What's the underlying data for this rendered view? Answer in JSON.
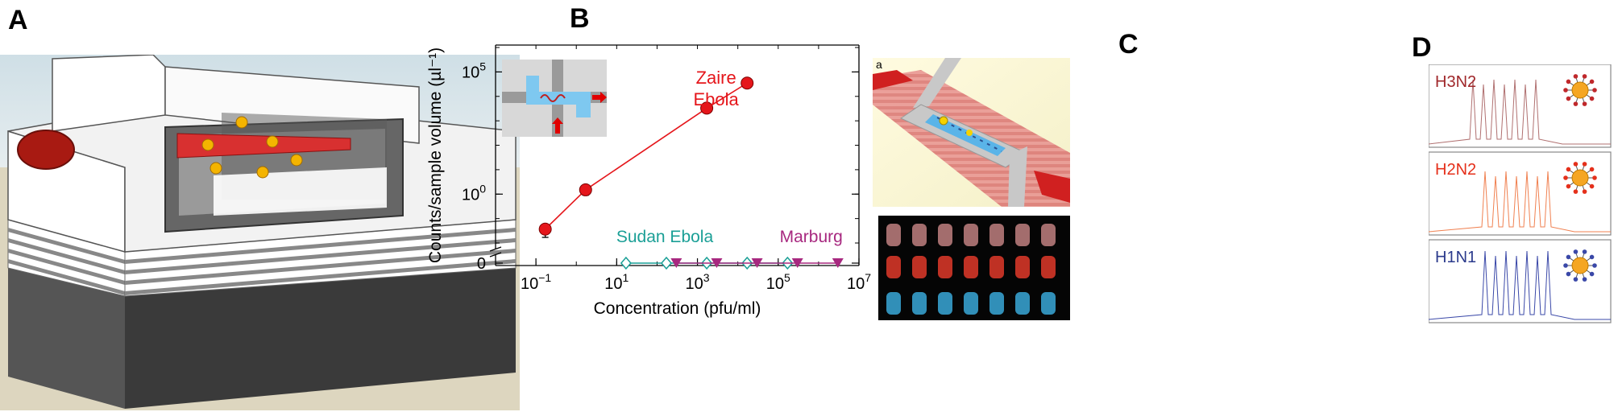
{
  "panels": {
    "a": {
      "letter": "A"
    },
    "b": {
      "letter": "B"
    },
    "c": {
      "letter": "C",
      "sub_label": "a"
    },
    "d": {
      "letter": "D"
    }
  },
  "chart_data": {
    "type": "scatter",
    "xlabel": "Concentration (pfu/ml)",
    "ylabel": "Counts/sample volume (µl⁻¹)",
    "x_scale": "log",
    "y_scale": "log",
    "xlim": [
      0.01,
      10000000
    ],
    "x_ticks": [
      {
        "value": 0.1,
        "base": "10",
        "exp": "−1"
      },
      {
        "value": 10,
        "base": "10",
        "exp": "1"
      },
      {
        "value": 1000,
        "base": "10",
        "exp": "3"
      },
      {
        "value": 100000,
        "base": "10",
        "exp": "5"
      },
      {
        "value": 10000000,
        "base": "10",
        "exp": "7"
      }
    ],
    "y_ticks": [
      {
        "value": 0,
        "base": "0",
        "exp": ""
      },
      {
        "value": 1,
        "base": "10",
        "exp": "0"
      },
      {
        "value": 100000,
        "base": "10",
        "exp": "5"
      }
    ],
    "series": [
      {
        "name": "Zaire Ebola",
        "label_lines": [
          "Zaire",
          "Ebola"
        ],
        "color": "#e5161b",
        "marker": "circle",
        "x": [
          0.17,
          1.7,
          1700,
          17000
        ],
        "y": [
          0.037,
          1.5,
          3300,
          35000
        ],
        "err_low": [
          0.02,
          0.6,
          1200,
          10000
        ],
        "err_high": [
          0.02,
          0.6,
          1200,
          12000
        ]
      },
      {
        "name": "Sudan Ebola",
        "label_lines": [
          "Sudan Ebola"
        ],
        "color": "#1a9f96",
        "marker": "diamond-open",
        "x": [
          17,
          170,
          1700,
          17000,
          170000
        ],
        "y": [
          0,
          0,
          0,
          0,
          0
        ]
      },
      {
        "name": "Marburg",
        "label_lines": [
          "Marburg"
        ],
        "color": "#a7287f",
        "marker": "triangle-down",
        "x": [
          300,
          3000,
          30000,
          300000,
          3000000
        ],
        "y": [
          0,
          0,
          0,
          0,
          0
        ]
      }
    ]
  },
  "panel_d": {
    "traces": [
      {
        "label": "H3N2",
        "color": "#a0282b",
        "trace_color": "#b07070",
        "spike_color": "#c0282b"
      },
      {
        "label": "H2N2",
        "color": "#e5301b",
        "trace_color": "#f08050",
        "spike_color": "#e5301b"
      },
      {
        "label": "H1N1",
        "color": "#2b3a8c",
        "trace_color": "#3a48a8",
        "spike_color": "#3a48a8"
      }
    ]
  }
}
